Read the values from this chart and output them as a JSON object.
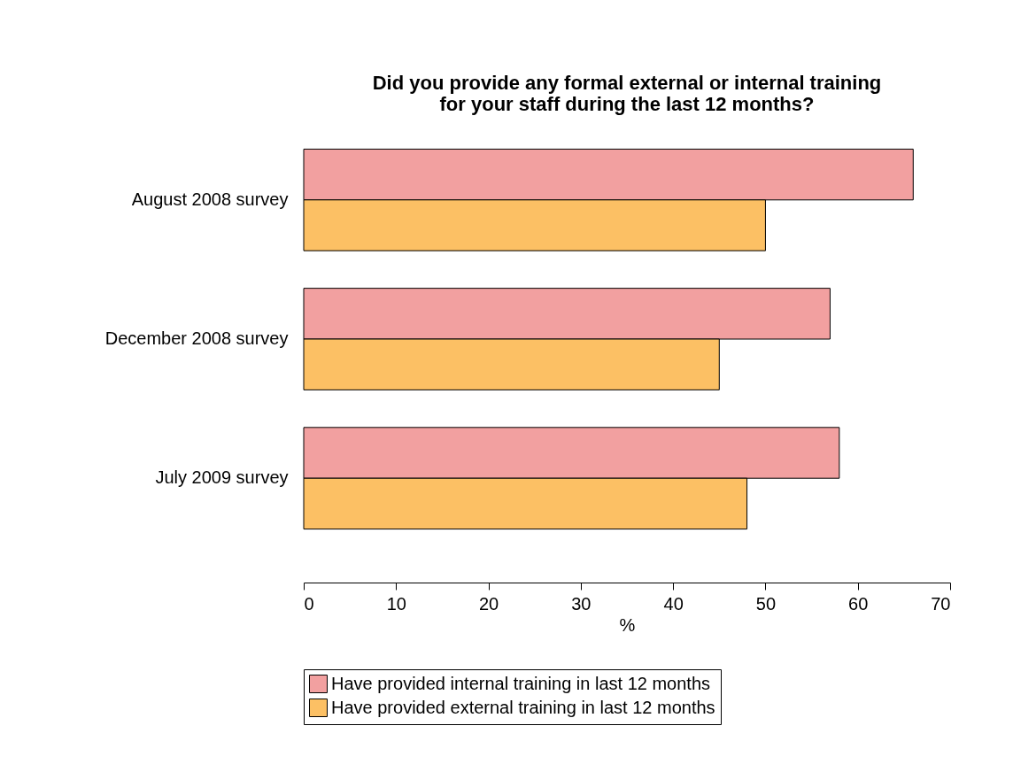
{
  "chart_data": {
    "type": "bar",
    "orientation": "horizontal",
    "title": "Did you provide any formal external or internal training\nfor your staff during the last 12 months?",
    "categories": [
      "August 2008 survey",
      "December 2008 survey",
      "July 2009 survey"
    ],
    "series": [
      {
        "name": "Have provided internal training in last 12 months",
        "color": "#f2a0a0",
        "values": [
          66,
          57,
          58
        ]
      },
      {
        "name": "Have provided external training in last 12 months",
        "color": "#fcc064",
        "values": [
          50,
          45,
          48
        ]
      }
    ],
    "xlabel": "%",
    "xlim": [
      0,
      70
    ],
    "xticks": [
      0,
      10,
      20,
      30,
      40,
      50,
      60,
      70
    ],
    "grid": false,
    "legend": "bottom"
  }
}
